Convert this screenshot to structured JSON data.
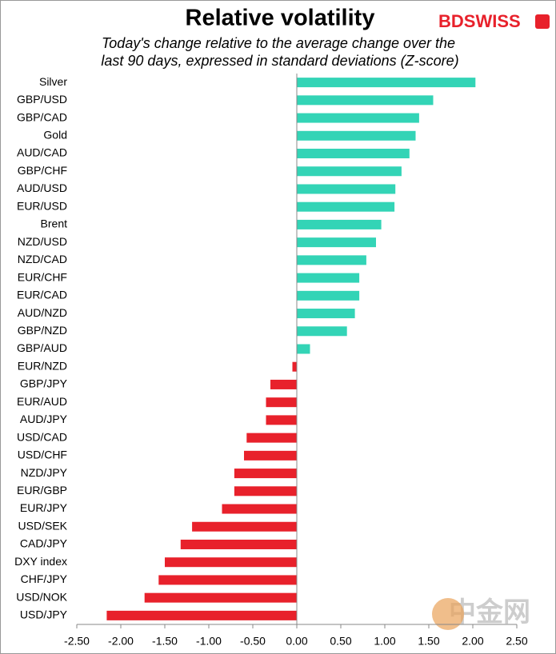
{
  "chart_data": {
    "type": "hbar",
    "title": "Relative volatility",
    "subtitle": [
      "Today's change relative to the average change over the",
      "last 90 days, expressed in standard deviations (Z-score)"
    ],
    "logo": "BDSWISS",
    "watermark": "中金网",
    "categories": [
      "Silver",
      "GBP/USD",
      "GBP/CAD",
      "Gold",
      "AUD/CAD",
      "GBP/CHF",
      "AUD/USD",
      "EUR/USD",
      "Brent",
      "NZD/USD",
      "NZD/CAD",
      "EUR/CHF",
      "EUR/CAD",
      "AUD/NZD",
      "GBP/NZD",
      "GBP/AUD",
      "EUR/NZD",
      "GBP/JPY",
      "EUR/AUD",
      "AUD/JPY",
      "USD/CAD",
      "USD/CHF",
      "NZD/JPY",
      "EUR/GBP",
      "EUR/JPY",
      "USD/SEK",
      "CAD/JPY",
      "DXY index",
      "CHF/JPY",
      "USD/NOK",
      "USD/JPY"
    ],
    "values": [
      2.03,
      1.55,
      1.39,
      1.35,
      1.28,
      1.19,
      1.12,
      1.11,
      0.96,
      0.9,
      0.79,
      0.71,
      0.71,
      0.66,
      0.57,
      0.15,
      -0.05,
      -0.3,
      -0.35,
      -0.35,
      -0.57,
      -0.6,
      -0.71,
      -0.71,
      -0.85,
      -1.19,
      -1.32,
      -1.5,
      -1.57,
      -1.73,
      -2.16
    ],
    "positive_color": "#33d4b6",
    "negative_color": "#e8212b",
    "xlim": [
      -2.5,
      2.5
    ],
    "xticks": [
      {
        "value": -2.5,
        "label": "-2.50"
      },
      {
        "value": -2,
        "label": "-2.00"
      },
      {
        "value": -1.5,
        "label": "-1.50"
      },
      {
        "value": -1,
        "label": "-1.00"
      },
      {
        "value": -0.5,
        "label": "-0.50"
      },
      {
        "value": 0,
        "label": "0.00"
      },
      {
        "value": 0.5,
        "label": "0.50"
      },
      {
        "value": 1,
        "label": "1.00"
      },
      {
        "value": 1.5,
        "label": "1.50"
      },
      {
        "value": 2,
        "label": "2.00"
      },
      {
        "value": 2.5,
        "label": "2.50"
      }
    ]
  }
}
